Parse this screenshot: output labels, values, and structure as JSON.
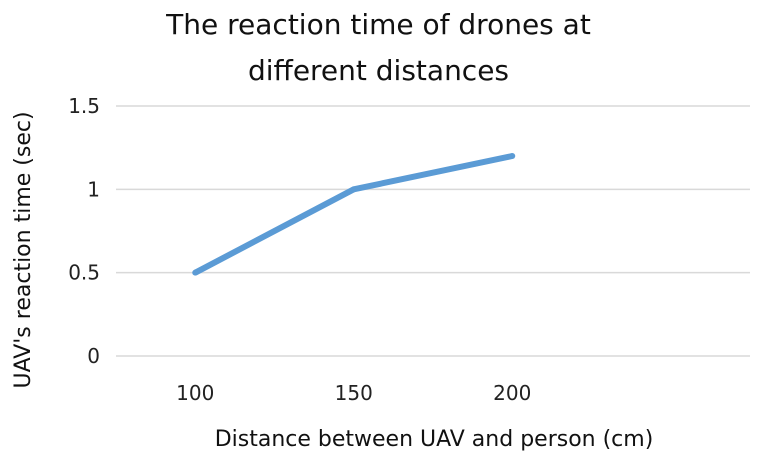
{
  "chart_data": {
    "type": "line",
    "title_lines": [
      "The reaction time of drones at",
      "different distances"
    ],
    "xlabel": "Distance between UAV and person (cm)",
    "ylabel": "UAV's reaction time (sec)",
    "categories": [
      "100",
      "150",
      "200"
    ],
    "x_slot_count": 4,
    "series": [
      {
        "values": [
          0.5,
          1.0,
          1.2
        ],
        "color": "#5b9bd5"
      }
    ],
    "y_ticks": [
      "0",
      "0.5",
      "1",
      "1.5"
    ],
    "y_tick_values": [
      0,
      0.5,
      1,
      1.5
    ],
    "ylim": [
      0,
      1.5
    ],
    "grid": true,
    "gridline_color": "#d9d9d9",
    "legend": false
  }
}
